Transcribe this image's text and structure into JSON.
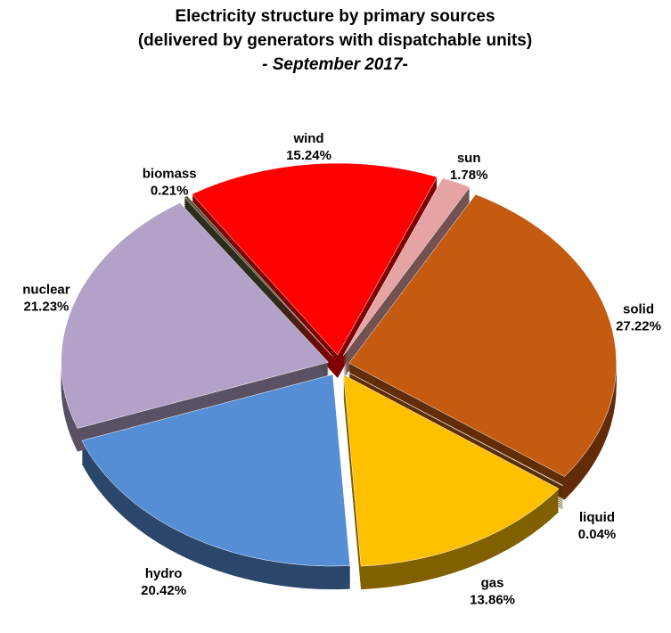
{
  "chart_data": {
    "type": "pie",
    "title": [
      "Electricity structure by primary sources",
      "(delivered by generators with dispatchable units)",
      "- September 2017-"
    ],
    "categories": [
      "wind",
      "sun",
      "solid",
      "liquid",
      "gas",
      "hydro",
      "nuclear",
      "biomass"
    ],
    "values": [
      15.24,
      1.78,
      27.22,
      0.04,
      13.86,
      20.42,
      21.23,
      0.21
    ],
    "value_labels": [
      "15.24%",
      "1.78%",
      "27.22%",
      "0.04%",
      "13.86%",
      "20.42%",
      "21.23%",
      "0.21%"
    ],
    "colors": [
      "#ff0000",
      "#e6a3a3",
      "#c55a11",
      "#7f6000",
      "#ffc000",
      "#558ed5",
      "#b3a2c7",
      "#5a5a3c"
    ]
  }
}
